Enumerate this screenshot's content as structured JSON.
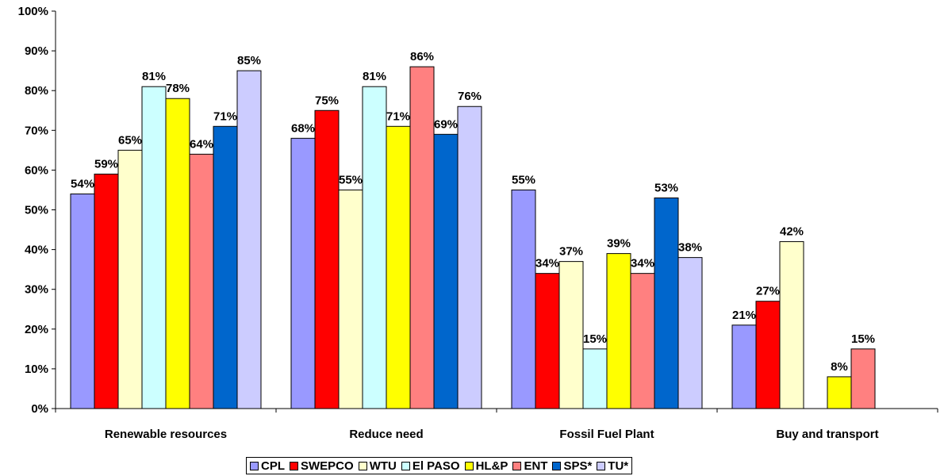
{
  "chart_data": {
    "type": "bar",
    "title": "",
    "xlabel": "",
    "ylabel": "",
    "ylim": [
      0,
      100
    ],
    "y_ticks": [
      "0%",
      "10%",
      "20%",
      "30%",
      "40%",
      "50%",
      "60%",
      "70%",
      "80%",
      "90%",
      "100%"
    ],
    "grid": false,
    "legend_position": "bottom",
    "categories": [
      "Renewable resources",
      "Reduce need",
      "Fossil Fuel Plant",
      "Buy and transport"
    ],
    "series": [
      {
        "name": "CPL",
        "color": "#9999ff",
        "values": [
          54,
          68,
          55,
          21
        ]
      },
      {
        "name": "SWEPCO",
        "color": "#ff0000",
        "values": [
          59,
          75,
          34,
          27
        ]
      },
      {
        "name": "WTU",
        "color": "#ffffcc",
        "values": [
          65,
          55,
          37,
          42
        ]
      },
      {
        "name": "El PASO",
        "color": "#ccffff",
        "values": [
          81,
          81,
          15,
          null
        ]
      },
      {
        "name": "HL&P",
        "color": "#ffff00",
        "values": [
          78,
          71,
          39,
          8
        ]
      },
      {
        "name": "ENT",
        "color": "#ff8080",
        "values": [
          64,
          86,
          34,
          15
        ]
      },
      {
        "name": "SPS*",
        "color": "#0066cc",
        "values": [
          71,
          69,
          53,
          null
        ]
      },
      {
        "name": "TU*",
        "color": "#ccccff",
        "values": [
          85,
          76,
          38,
          null
        ]
      }
    ],
    "value_suffix": "%"
  }
}
